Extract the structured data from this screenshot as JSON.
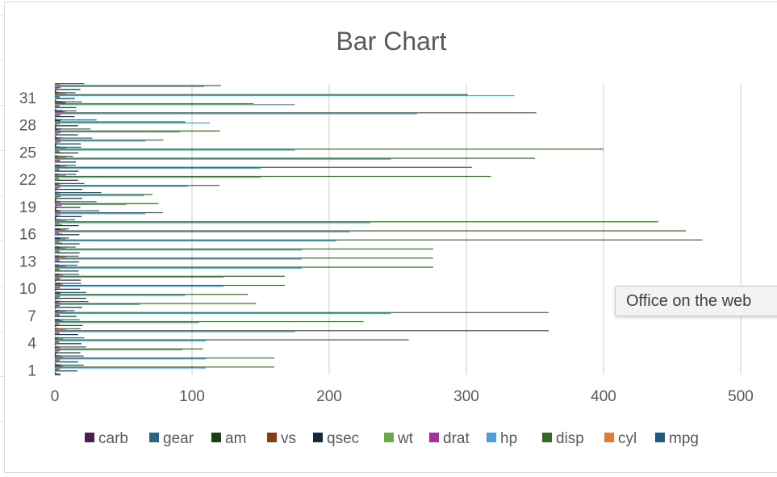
{
  "tooltip": "Office on the web",
  "chart_data": {
    "type": "bar",
    "orientation": "horizontal",
    "title": "Bar Chart",
    "categories": [
      1,
      2,
      3,
      4,
      5,
      6,
      7,
      8,
      9,
      10,
      11,
      12,
      13,
      14,
      15,
      16,
      17,
      18,
      19,
      20,
      21,
      22,
      23,
      24,
      25,
      26,
      27,
      28,
      29,
      30,
      31,
      32
    ],
    "y_tick_labels": [
      "1",
      "4",
      "7",
      "10",
      "13",
      "16",
      "19",
      "22",
      "25",
      "28",
      "31"
    ],
    "x_ticks": [
      0,
      100,
      200,
      300,
      400,
      500
    ],
    "xlim": [
      0,
      500
    ],
    "grid": true,
    "legend_position": "bottom",
    "series": [
      {
        "name": "carb",
        "color": "#4e1f4f",
        "values": [
          4,
          4,
          1,
          1,
          2,
          1,
          4,
          2,
          2,
          4,
          4,
          3,
          3,
          3,
          4,
          4,
          4,
          1,
          2,
          1,
          1,
          2,
          2,
          4,
          2,
          1,
          2,
          2,
          4,
          6,
          8,
          2
        ]
      },
      {
        "name": "gear",
        "color": "#2b6587",
        "values": [
          4,
          4,
          4,
          3,
          3,
          3,
          3,
          4,
          4,
          4,
          4,
          3,
          3,
          3,
          3,
          3,
          3,
          4,
          4,
          4,
          3,
          3,
          3,
          3,
          3,
          4,
          5,
          5,
          5,
          5,
          5,
          4
        ]
      },
      {
        "name": "am",
        "color": "#1d3b17",
        "values": [
          1,
          1,
          1,
          0,
          0,
          0,
          0,
          0,
          0,
          0,
          0,
          0,
          0,
          0,
          0,
          0,
          0,
          1,
          1,
          1,
          0,
          0,
          0,
          0,
          0,
          1,
          1,
          1,
          1,
          1,
          1,
          1
        ]
      },
      {
        "name": "vs",
        "color": "#8b3a1a",
        "values": [
          0,
          0,
          1,
          1,
          0,
          1,
          0,
          1,
          1,
          1,
          1,
          0,
          0,
          0,
          0,
          0,
          0,
          1,
          1,
          1,
          1,
          0,
          0,
          0,
          0,
          1,
          0,
          1,
          0,
          0,
          0,
          1
        ]
      },
      {
        "name": "qsec",
        "color": "#12293f",
        "values": [
          16.46,
          17.02,
          18.61,
          19.44,
          17.02,
          20.22,
          15.84,
          20,
          22.9,
          18.3,
          18.9,
          17.4,
          17.6,
          18,
          17.98,
          17.82,
          17.42,
          19.47,
          18.52,
          19.9,
          20.01,
          16.87,
          17.3,
          15.41,
          17.05,
          18.9,
          16.7,
          16.9,
          14.5,
          15.5,
          14.6,
          18.6
        ]
      },
      {
        "name": "wt",
        "color": "#6aa84f",
        "values": [
          2.62,
          2.875,
          2.32,
          3.215,
          3.44,
          3.46,
          3.57,
          3.19,
          3.15,
          3.44,
          3.44,
          4.07,
          3.73,
          3.78,
          5.25,
          5.424,
          5.345,
          2.2,
          1.615,
          1.835,
          2.465,
          3.52,
          3.435,
          3.84,
          3.845,
          1.935,
          2.14,
          1.513,
          3.17,
          2.77,
          3.57,
          2.78
        ]
      },
      {
        "name": "drat",
        "color": "#a4309b",
        "values": [
          3.9,
          3.9,
          3.85,
          3.08,
          3.15,
          2.76,
          3.21,
          3.69,
          3.92,
          3.92,
          3.92,
          3.07,
          3.07,
          3.07,
          2.93,
          3,
          3.23,
          4.08,
          4.93,
          4.22,
          3.7,
          2.76,
          3.15,
          3.73,
          3.08,
          4.08,
          4.43,
          3.77,
          4.22,
          3.62,
          3.54,
          4.11
        ]
      },
      {
        "name": "hp",
        "color": "#4d9fd6",
        "values": [
          110,
          110,
          93,
          110,
          175,
          105,
          245,
          62,
          95,
          123,
          123,
          180,
          180,
          180,
          205,
          215,
          230,
          66,
          52,
          65,
          97,
          150,
          150,
          245,
          175,
          66,
          91,
          113,
          264,
          175,
          335,
          109
        ]
      },
      {
        "name": "disp",
        "color": "#36682a",
        "values": [
          160,
          160,
          108,
          258,
          360,
          225,
          360,
          146.7,
          140.8,
          167.6,
          167.6,
          275.8,
          275.8,
          275.8,
          472,
          460,
          440,
          78.7,
          75.7,
          71.1,
          120.1,
          318,
          304,
          350,
          400,
          79,
          120.3,
          95.1,
          351,
          145,
          301,
          121
        ]
      },
      {
        "name": "cyl",
        "color": "#e07b39",
        "values": [
          6,
          6,
          4,
          6,
          8,
          6,
          8,
          4,
          4,
          6,
          6,
          8,
          8,
          8,
          8,
          8,
          8,
          4,
          4,
          4,
          4,
          8,
          8,
          8,
          8,
          4,
          4,
          4,
          8,
          6,
          8,
          4
        ]
      },
      {
        "name": "mpg",
        "color": "#24587e",
        "values": [
          21,
          21,
          22.8,
          21.4,
          18.7,
          18.1,
          14.3,
          24.4,
          22.8,
          19.2,
          17.8,
          16.4,
          17.3,
          15.2,
          10.4,
          10.4,
          14.7,
          32.4,
          30.4,
          33.9,
          21.5,
          15.5,
          15.2,
          13.3,
          19.2,
          27.3,
          26,
          30.4,
          15.8,
          19.7,
          15,
          21.4
        ]
      }
    ]
  }
}
